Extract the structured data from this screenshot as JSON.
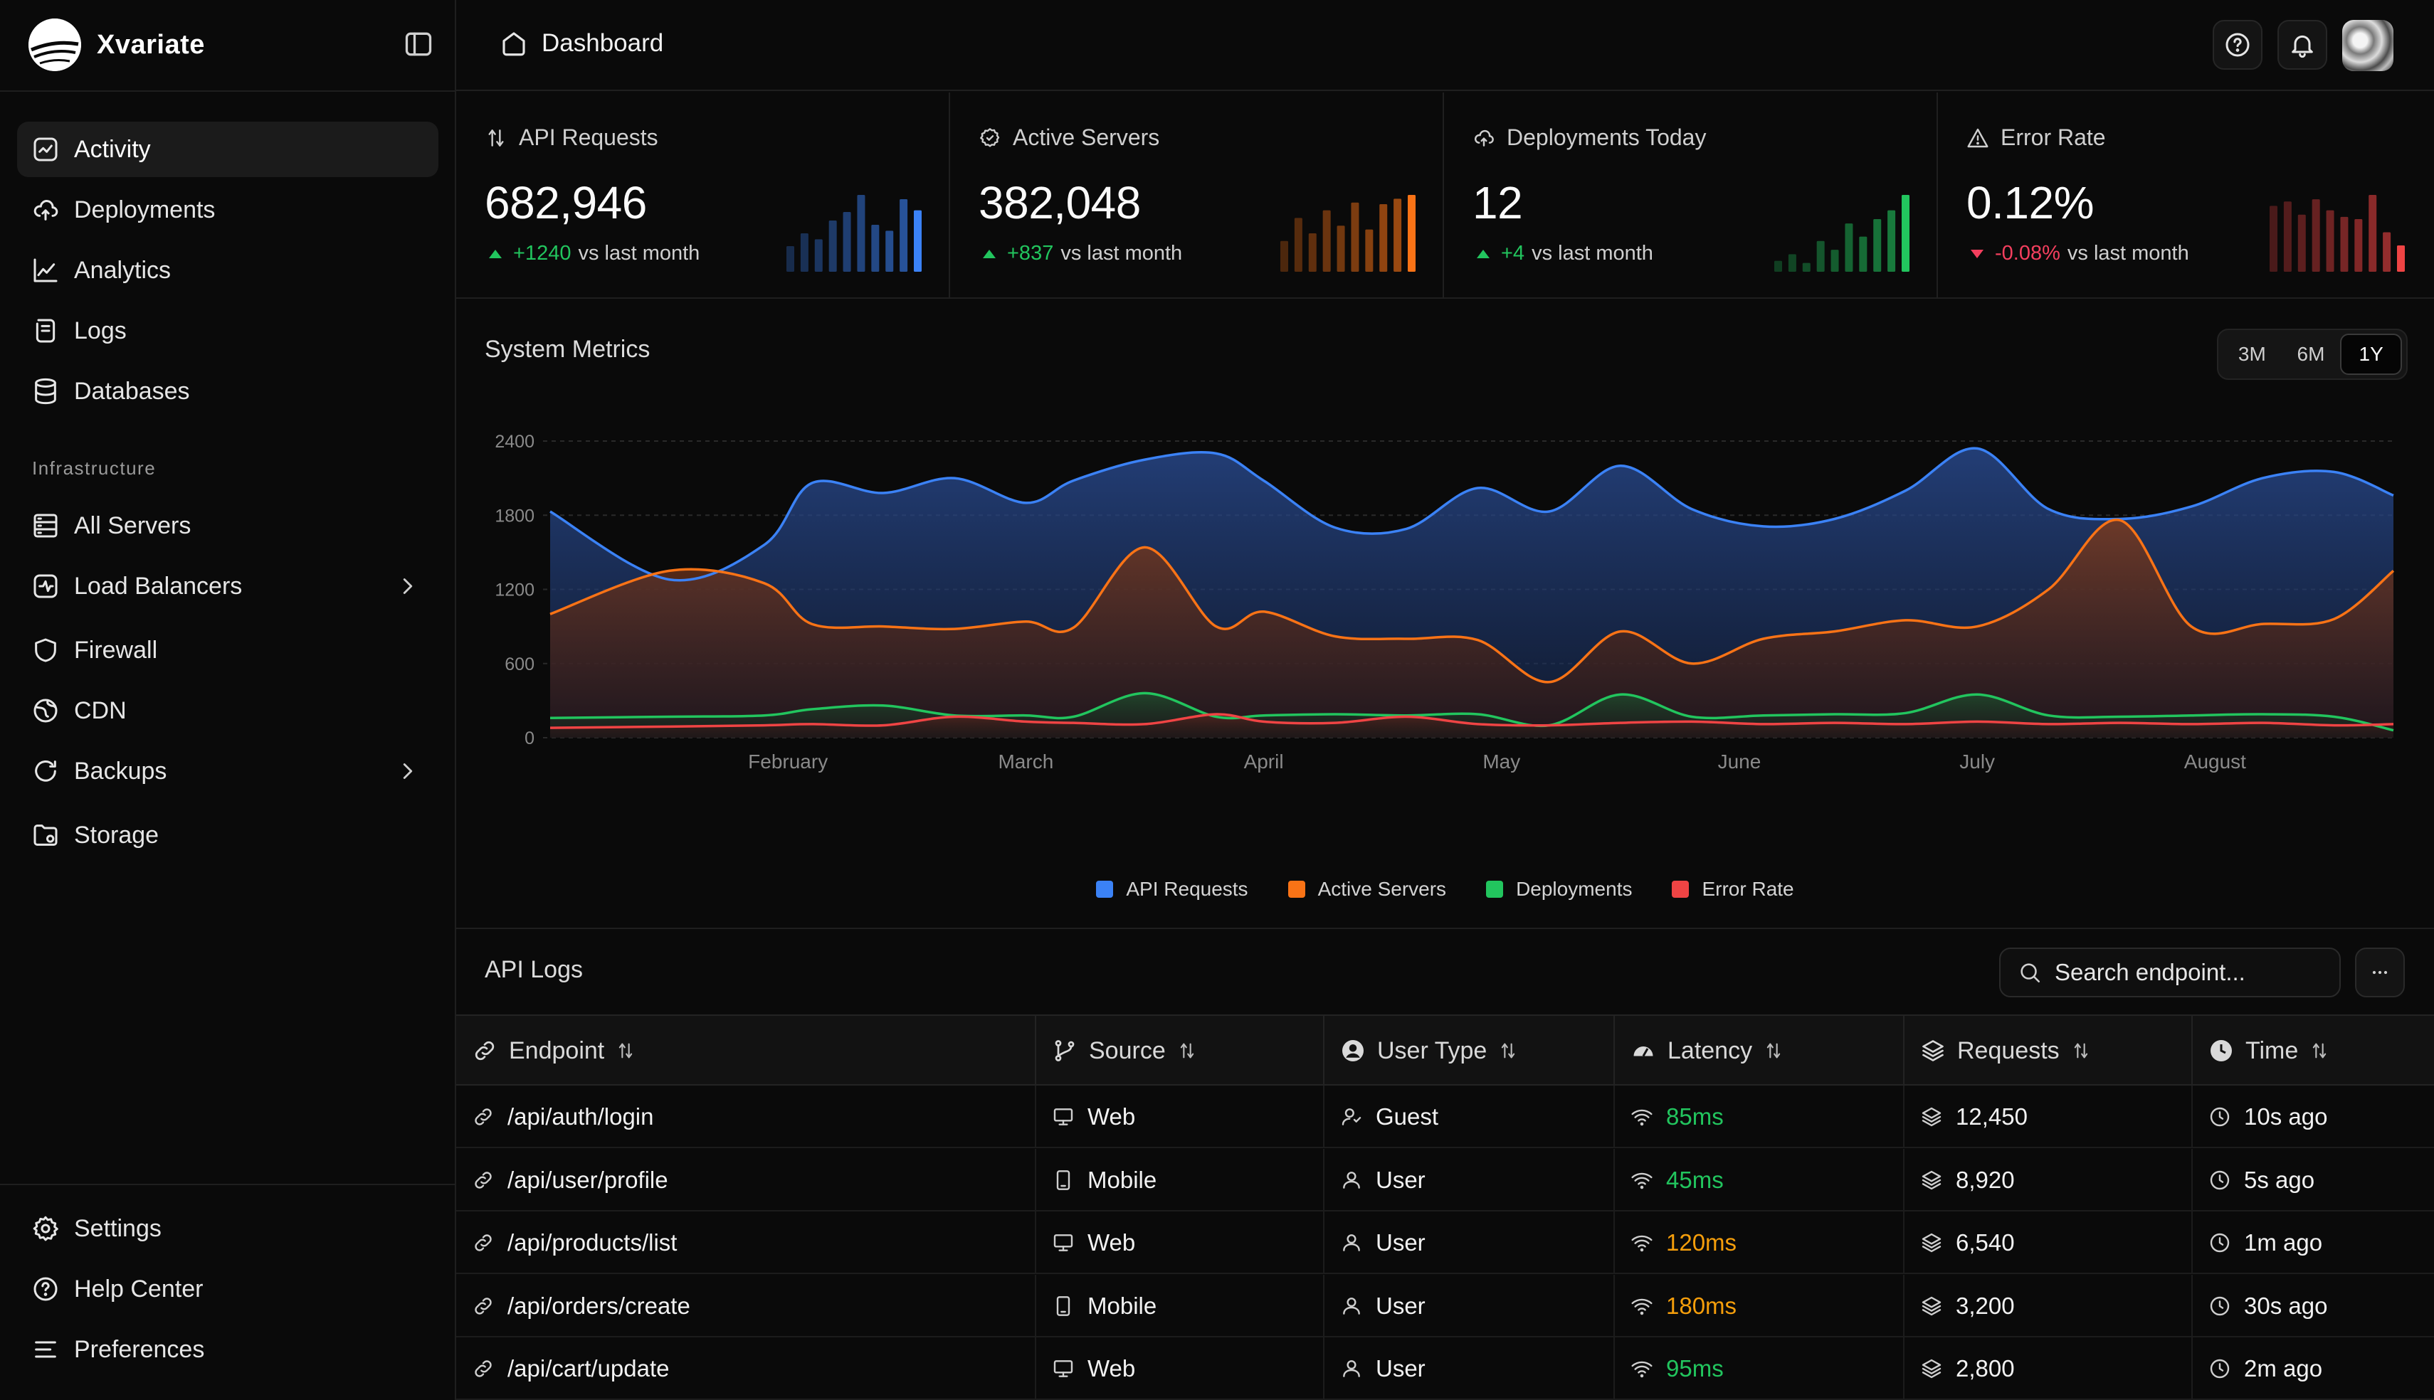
{
  "app": {
    "name": "Xvariate"
  },
  "header": {
    "title": "Dashboard"
  },
  "sidebar": {
    "items": [
      {
        "label": "Activity",
        "icon": "activity-icon",
        "active": true
      },
      {
        "label": "Deployments",
        "icon": "cloud-upload-icon"
      },
      {
        "label": "Analytics",
        "icon": "chart-line-icon"
      },
      {
        "label": "Logs",
        "icon": "scroll-icon"
      },
      {
        "label": "Databases",
        "icon": "database-icon"
      }
    ],
    "section_label": "Infrastructure",
    "infra_items": [
      {
        "label": "All Servers",
        "icon": "server-icon"
      },
      {
        "label": "Load Balancers",
        "icon": "activity-square-icon",
        "has_submenu": true
      },
      {
        "label": "Firewall",
        "icon": "shield-icon"
      },
      {
        "label": "CDN",
        "icon": "globe-icon"
      },
      {
        "label": "Backups",
        "icon": "refresh-icon",
        "has_submenu": true
      },
      {
        "label": "Storage",
        "icon": "folder-icon"
      }
    ],
    "footer_items": [
      {
        "label": "Settings",
        "icon": "gear-icon"
      },
      {
        "label": "Help Center",
        "icon": "help-circle-icon"
      },
      {
        "label": "Preferences",
        "icon": "list-icon"
      }
    ]
  },
  "stats": [
    {
      "title": "API Requests",
      "icon": "arrows-updown-icon",
      "value": "682,946",
      "delta": "+1240",
      "delta_suffix": "vs last month",
      "trend": "up",
      "color": "#3b82f6",
      "spark": [
        30,
        45,
        38,
        60,
        70,
        90,
        55,
        48,
        85,
        72
      ]
    },
    {
      "title": "Active Servers",
      "icon": "gear-badge-icon",
      "value": "382,048",
      "delta": "+837",
      "delta_suffix": "vs last month",
      "trend": "up",
      "color": "#f97316",
      "spark": [
        40,
        70,
        50,
        80,
        60,
        90,
        55,
        88,
        95,
        100
      ]
    },
    {
      "title": "Deployments Today",
      "icon": "cloud-upload-icon",
      "value": "12",
      "delta": "+4",
      "delta_suffix": "vs last month",
      "trend": "up",
      "color": "#22c55e",
      "spark": [
        5,
        8,
        4,
        14,
        10,
        22,
        16,
        24,
        28,
        35
      ]
    },
    {
      "title": "Error Rate",
      "icon": "warning-icon",
      "value": "0.12%",
      "delta": "-0.08%",
      "delta_suffix": "vs last month",
      "trend": "down",
      "color": "#ef4444",
      "spark": [
        30,
        32,
        26,
        33,
        28,
        25,
        24,
        35,
        18,
        12
      ]
    }
  ],
  "metrics": {
    "title": "System Metrics",
    "ranges": [
      "3M",
      "6M",
      "1Y"
    ],
    "active_range": "1Y",
    "chart_data": {
      "type": "area",
      "yticks": [
        "2400",
        "1800",
        "1200",
        "600",
        "0"
      ],
      "ylim": [
        0,
        2400
      ],
      "xlabels": [
        "February",
        "March",
        "April",
        "May",
        "June",
        "July",
        "August"
      ],
      "xlabel_pos": [
        1,
        2,
        3,
        4,
        5,
        6,
        7
      ],
      "x": [
        0.0,
        0.5,
        0.9,
        1.1,
        1.4,
        1.7,
        2.0,
        2.2,
        2.5,
        2.8,
        3.0,
        3.3,
        3.6,
        3.9,
        4.2,
        4.5,
        4.8,
        5.1,
        5.4,
        5.7,
        6.0,
        6.3,
        6.6,
        6.9,
        7.2,
        7.5,
        7.75
      ],
      "series": [
        {
          "name": "API Requests",
          "color": "#3b82f6",
          "values": [
            1830,
            1280,
            1560,
            2060,
            1980,
            2100,
            1900,
            2080,
            2250,
            2300,
            2080,
            1700,
            1690,
            2020,
            1830,
            2200,
            1850,
            1710,
            1770,
            2000,
            2340,
            1850,
            1770,
            1870,
            2100,
            2150,
            1960
          ]
        },
        {
          "name": "Active Servers",
          "color": "#f97316",
          "values": [
            1000,
            1350,
            1250,
            920,
            900,
            880,
            940,
            890,
            1540,
            900,
            1020,
            820,
            800,
            790,
            450,
            860,
            600,
            800,
            860,
            950,
            900,
            1200,
            1760,
            900,
            920,
            960,
            1350
          ]
        },
        {
          "name": "Deployments",
          "color": "#22c55e",
          "values": [
            160,
            170,
            180,
            230,
            260,
            180,
            180,
            170,
            360,
            170,
            180,
            190,
            180,
            190,
            100,
            350,
            170,
            180,
            190,
            200,
            350,
            180,
            170,
            180,
            190,
            170,
            60
          ]
        },
        {
          "name": "Error Rate",
          "color": "#ef4444",
          "values": [
            80,
            90,
            100,
            110,
            100,
            170,
            130,
            120,
            110,
            190,
            130,
            120,
            170,
            110,
            100,
            120,
            130,
            110,
            120,
            110,
            130,
            110,
            120,
            110,
            120,
            100,
            110
          ]
        }
      ]
    }
  },
  "logs": {
    "title": "API Logs",
    "search_placeholder": "Search endpoint...",
    "columns": [
      "Endpoint",
      "Source",
      "User Type",
      "Latency",
      "Requests",
      "Time"
    ],
    "rows": [
      {
        "endpoint": "/api/auth/login",
        "source": "Web",
        "source_icon": "monitor-icon",
        "user_type": "Guest",
        "user_icon": "guest-user-icon",
        "latency": "85ms",
        "latency_level": "green",
        "requests": "12,450",
        "time": "10s ago"
      },
      {
        "endpoint": "/api/user/profile",
        "source": "Mobile",
        "source_icon": "mobile-icon",
        "user_type": "User",
        "user_icon": "user-icon",
        "latency": "45ms",
        "latency_level": "green",
        "requests": "8,920",
        "time": "5s ago"
      },
      {
        "endpoint": "/api/products/list",
        "source": "Web",
        "source_icon": "monitor-icon",
        "user_type": "User",
        "user_icon": "user-icon",
        "latency": "120ms",
        "latency_level": "orange",
        "requests": "6,540",
        "time": "1m ago"
      },
      {
        "endpoint": "/api/orders/create",
        "source": "Mobile",
        "source_icon": "mobile-icon",
        "user_type": "User",
        "user_icon": "user-icon",
        "latency": "180ms",
        "latency_level": "orange",
        "requests": "3,200",
        "time": "30s ago"
      },
      {
        "endpoint": "/api/cart/update",
        "source": "Web",
        "source_icon": "monitor-icon",
        "user_type": "User",
        "user_icon": "user-icon",
        "latency": "95ms",
        "latency_level": "green",
        "requests": "2,800",
        "time": "2m ago"
      }
    ]
  }
}
